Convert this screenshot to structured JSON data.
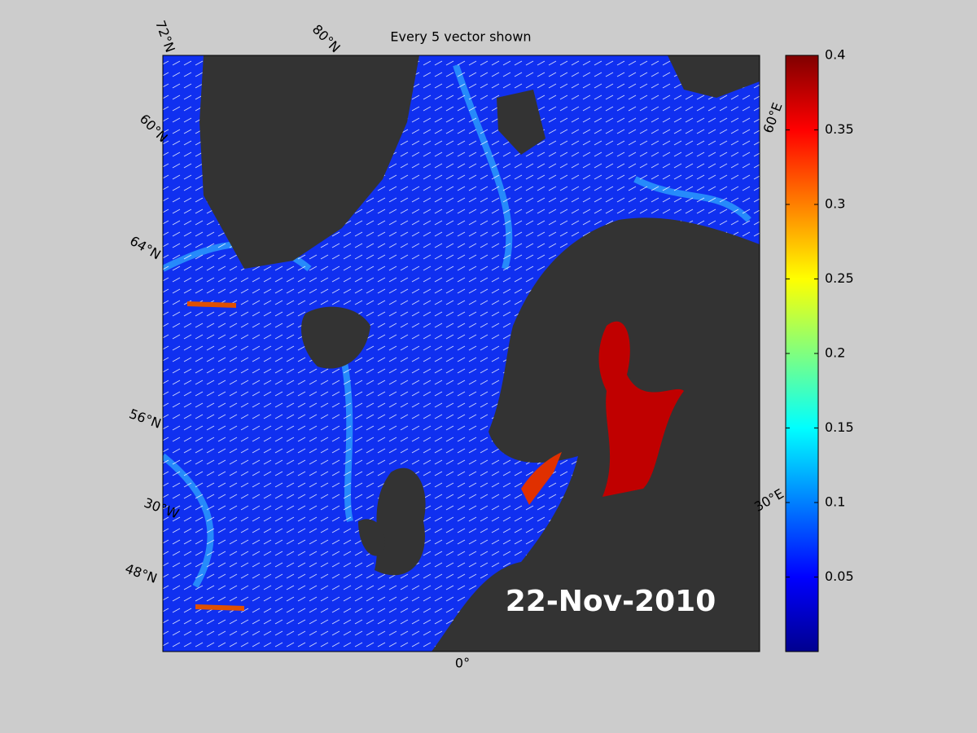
{
  "title": "Every 5 vector shown",
  "map": {
    "labels": [
      "72°N",
      "80°N",
      "60°N",
      "64°N",
      "56°N",
      "30°W",
      "48°N",
      "0°",
      "30°E",
      "60°E"
    ],
    "date": "22-Nov-2010"
  },
  "colorbar": {
    "lim": [
      0,
      0.4
    ],
    "ticks": [
      0.05,
      0.1,
      0.15,
      0.2,
      0.25,
      0.3,
      0.35,
      0.4
    ]
  }
}
